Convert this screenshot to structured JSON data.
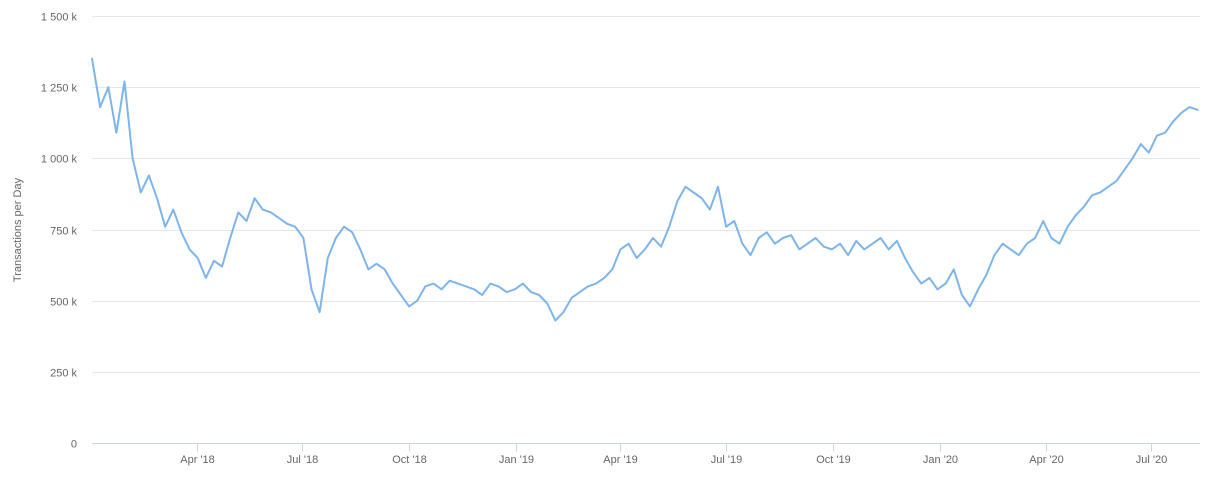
{
  "chart_data": {
    "type": "line",
    "title": "",
    "xlabel": "",
    "ylabel": "Transactions per Day",
    "ylim": [
      0,
      1500000
    ],
    "xlim": [
      "2018-01-01",
      "2020-08-12"
    ],
    "grid": "horizontal",
    "legend": "none",
    "y_ticks": [
      {
        "value": 0,
        "label": "0"
      },
      {
        "value": 250000,
        "label": "250 k"
      },
      {
        "value": 500000,
        "label": "500 k"
      },
      {
        "value": 750000,
        "label": "750 k"
      },
      {
        "value": 1000000,
        "label": "1 000 k"
      },
      {
        "value": 1250000,
        "label": "1 250 k"
      },
      {
        "value": 1500000,
        "label": "1 500 k"
      }
    ],
    "x_ticks": [
      {
        "value": "2018-04-01",
        "label": "Apr '18"
      },
      {
        "value": "2018-07-01",
        "label": "Jul '18"
      },
      {
        "value": "2018-10-01",
        "label": "Oct '18"
      },
      {
        "value": "2019-01-01",
        "label": "Jan '19"
      },
      {
        "value": "2019-04-01",
        "label": "Apr '19"
      },
      {
        "value": "2019-07-01",
        "label": "Jul '19"
      },
      {
        "value": "2019-10-01",
        "label": "Oct '19"
      },
      {
        "value": "2020-01-01",
        "label": "Jan '20"
      },
      {
        "value": "2020-04-01",
        "label": "Apr '20"
      },
      {
        "value": "2020-07-01",
        "label": "Jul '20"
      }
    ],
    "series": [
      {
        "color": "#7cb5ec",
        "x": [
          "2018-01-01",
          "2018-01-08",
          "2018-01-15",
          "2018-01-22",
          "2018-01-29",
          "2018-02-05",
          "2018-02-12",
          "2018-02-19",
          "2018-02-26",
          "2018-03-05",
          "2018-03-12",
          "2018-03-19",
          "2018-03-26",
          "2018-04-02",
          "2018-04-09",
          "2018-04-16",
          "2018-04-23",
          "2018-04-30",
          "2018-05-07",
          "2018-05-14",
          "2018-05-21",
          "2018-05-28",
          "2018-06-04",
          "2018-06-11",
          "2018-06-18",
          "2018-06-25",
          "2018-07-02",
          "2018-07-09",
          "2018-07-16",
          "2018-07-23",
          "2018-07-30",
          "2018-08-06",
          "2018-08-13",
          "2018-08-20",
          "2018-08-27",
          "2018-09-03",
          "2018-09-10",
          "2018-09-17",
          "2018-09-24",
          "2018-10-01",
          "2018-10-08",
          "2018-10-15",
          "2018-10-22",
          "2018-10-29",
          "2018-11-05",
          "2018-11-12",
          "2018-11-19",
          "2018-11-26",
          "2018-12-03",
          "2018-12-10",
          "2018-12-17",
          "2018-12-24",
          "2018-12-31",
          "2019-01-07",
          "2019-01-14",
          "2019-01-21",
          "2019-01-28",
          "2019-02-04",
          "2019-02-11",
          "2019-02-18",
          "2019-02-25",
          "2019-03-04",
          "2019-03-11",
          "2019-03-18",
          "2019-03-25",
          "2019-04-01",
          "2019-04-08",
          "2019-04-15",
          "2019-04-22",
          "2019-04-29",
          "2019-05-06",
          "2019-05-13",
          "2019-05-20",
          "2019-05-27",
          "2019-06-03",
          "2019-06-10",
          "2019-06-17",
          "2019-06-24",
          "2019-07-01",
          "2019-07-08",
          "2019-07-15",
          "2019-07-22",
          "2019-07-29",
          "2019-08-05",
          "2019-08-12",
          "2019-08-19",
          "2019-08-26",
          "2019-09-02",
          "2019-09-09",
          "2019-09-16",
          "2019-09-23",
          "2019-09-30",
          "2019-10-07",
          "2019-10-14",
          "2019-10-21",
          "2019-10-28",
          "2019-11-04",
          "2019-11-11",
          "2019-11-18",
          "2019-11-25",
          "2019-12-02",
          "2019-12-09",
          "2019-12-16",
          "2019-12-23",
          "2019-12-30",
          "2020-01-06",
          "2020-01-13",
          "2020-01-20",
          "2020-01-27",
          "2020-02-03",
          "2020-02-10",
          "2020-02-17",
          "2020-02-24",
          "2020-03-02",
          "2020-03-09",
          "2020-03-16",
          "2020-03-23",
          "2020-03-30",
          "2020-04-06",
          "2020-04-13",
          "2020-04-20",
          "2020-04-27",
          "2020-05-04",
          "2020-05-11",
          "2020-05-18",
          "2020-05-25",
          "2020-06-01",
          "2020-06-08",
          "2020-06-15",
          "2020-06-22",
          "2020-06-29",
          "2020-07-06",
          "2020-07-13",
          "2020-07-20",
          "2020-07-27",
          "2020-08-03",
          "2020-08-10"
        ],
        "values": [
          1350000,
          1180000,
          1250000,
          1090000,
          1270000,
          1000000,
          880000,
          940000,
          860000,
          760000,
          820000,
          740000,
          680000,
          650000,
          580000,
          640000,
          620000,
          720000,
          810000,
          780000,
          860000,
          820000,
          810000,
          790000,
          770000,
          760000,
          720000,
          540000,
          460000,
          650000,
          720000,
          760000,
          740000,
          680000,
          610000,
          630000,
          610000,
          560000,
          520000,
          480000,
          500000,
          550000,
          560000,
          540000,
          570000,
          560000,
          550000,
          540000,
          520000,
          560000,
          550000,
          530000,
          540000,
          560000,
          530000,
          520000,
          490000,
          430000,
          460000,
          510000,
          530000,
          550000,
          560000,
          580000,
          610000,
          680000,
          700000,
          650000,
          680000,
          720000,
          690000,
          760000,
          850000,
          900000,
          880000,
          860000,
          820000,
          900000,
          760000,
          780000,
          700000,
          660000,
          720000,
          740000,
          700000,
          720000,
          730000,
          680000,
          700000,
          720000,
          690000,
          680000,
          700000,
          660000,
          710000,
          680000,
          700000,
          720000,
          680000,
          710000,
          650000,
          600000,
          560000,
          580000,
          540000,
          560000,
          610000,
          520000,
          480000,
          540000,
          590000,
          660000,
          700000,
          680000,
          660000,
          700000,
          720000,
          780000,
          720000,
          700000,
          760000,
          800000,
          830000,
          870000,
          880000,
          900000,
          920000,
          960000,
          1000000,
          1050000,
          1020000,
          1080000,
          1090000,
          1130000,
          1160000,
          1180000,
          1170000
        ]
      }
    ]
  }
}
